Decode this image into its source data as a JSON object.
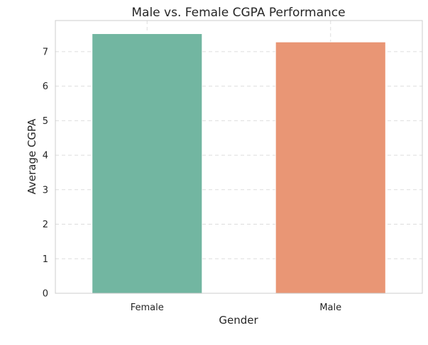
{
  "chart_data": {
    "type": "bar",
    "title": "Male vs. Female CGPA Performance",
    "xlabel": "Gender",
    "ylabel": "Average CGPA",
    "categories": [
      "Female",
      "Male"
    ],
    "values": [
      7.52,
      7.28
    ],
    "ylim": [
      0,
      7.9
    ],
    "yticks": [
      0,
      1,
      2,
      3,
      4,
      5,
      6,
      7
    ],
    "colors": [
      "#72b6a1",
      "#e99675"
    ],
    "grid": true,
    "legend": "none"
  }
}
